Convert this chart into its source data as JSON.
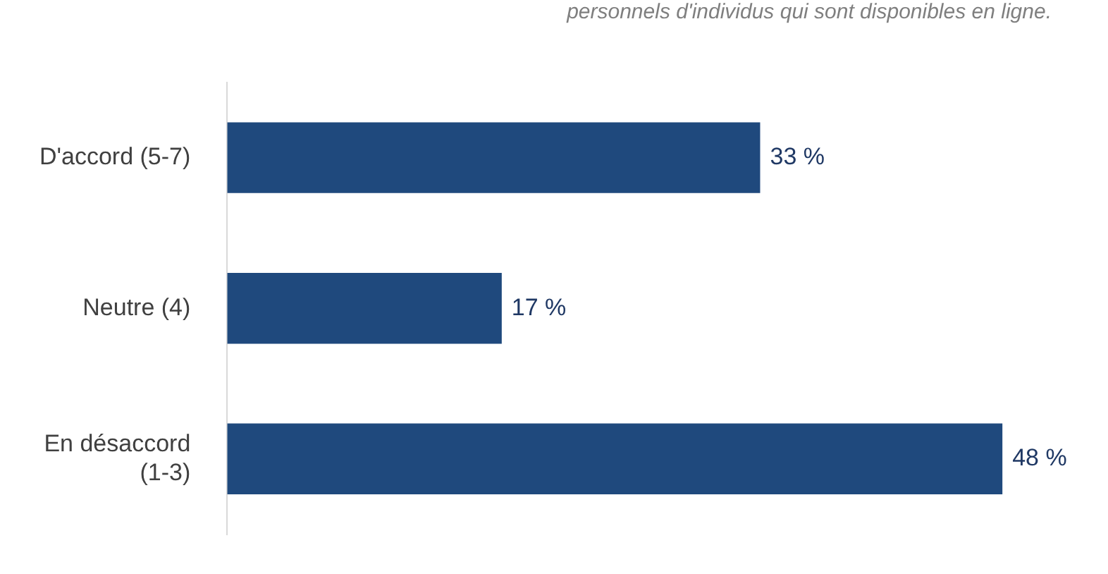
{
  "chart_data": {
    "type": "bar",
    "orientation": "horizontal",
    "subtitle": "personnels d'individus qui sont disponibles en ligne.",
    "categories": [
      "D'accord (5-7)",
      "Neutre (4)",
      "En désaccord (1-3)"
    ],
    "values": [
      33,
      17,
      48
    ],
    "value_labels": [
      "33 %",
      "17 %",
      "48 %"
    ],
    "color": "#1f497d",
    "tick_labels": "y",
    "legend": false
  }
}
